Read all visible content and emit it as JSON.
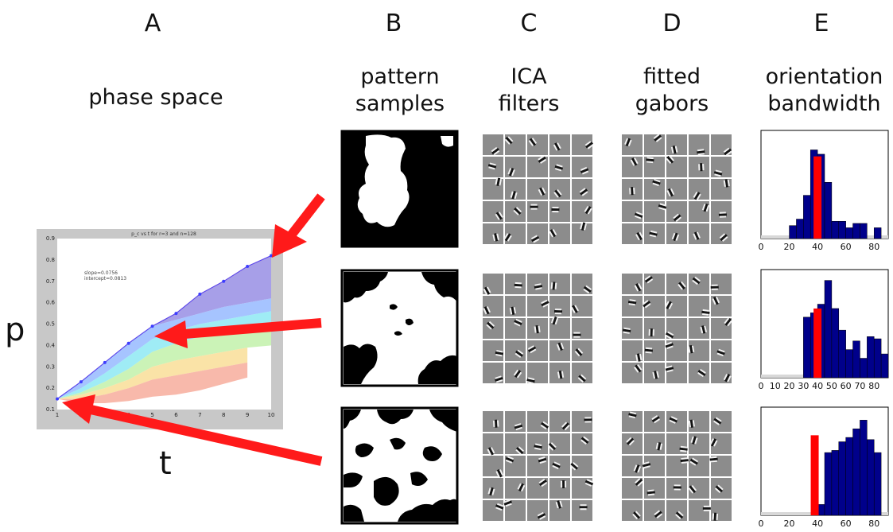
{
  "panel_letters": [
    "A",
    "B",
    "C",
    "D",
    "E"
  ],
  "column_titles": {
    "A": "phase space",
    "B": [
      "pattern",
      "samples"
    ],
    "C": [
      "ICA",
      "filters"
    ],
    "D": [
      "fitted",
      "gabors"
    ],
    "E": [
      "orientation",
      "bandwidth"
    ]
  },
  "axis_letters": {
    "y": "p",
    "x": "t"
  },
  "colors": {
    "arrow": "#ff1a1a",
    "bar_blue": "#00008b",
    "bar_red": "#ff0000",
    "inset_frame": "#c8c8c8"
  },
  "chart_data": [
    {
      "type": "line",
      "title": "p_c vs t for r=3 and n=128",
      "xlim": [
        1,
        10
      ],
      "ylim": [
        0.1,
        0.9
      ],
      "x_ticks": [
        "1",
        "2",
        "3",
        "4",
        "5",
        "6",
        "7",
        "8",
        "9",
        "10"
      ],
      "y_ticks": [
        "0.1",
        "0.2",
        "0.3",
        "0.4",
        "0.5",
        "0.6",
        "0.7",
        "0.8",
        "0.9"
      ],
      "annotations": [
        "slope=0.0756",
        "intercept=0.0813"
      ],
      "series": [
        {
          "x": [
            1,
            2,
            3,
            4,
            5,
            6,
            7,
            8,
            9,
            10
          ],
          "y": [
            0.15,
            0.23,
            0.32,
            0.41,
            0.49,
            0.55,
            0.64,
            0.7,
            0.77,
            0.82
          ]
        }
      ],
      "bands": [
        {
          "color": "#8a7fe0",
          "lower": [
            0.15,
            0.23,
            0.32,
            0.41,
            0.49,
            0.52,
            0.55,
            0.58,
            0.6,
            0.62
          ],
          "upper": [
            0.15,
            0.23,
            0.32,
            0.41,
            0.49,
            0.55,
            0.64,
            0.7,
            0.77,
            0.82
          ]
        },
        {
          "color": "#88b0ff",
          "lower": [
            0.15,
            0.2,
            0.27,
            0.35,
            0.43,
            0.47,
            0.5,
            0.52,
            0.54,
            0.56
          ],
          "upper": [
            0.15,
            0.23,
            0.32,
            0.41,
            0.49,
            0.52,
            0.55,
            0.58,
            0.6,
            0.62
          ]
        },
        {
          "color": "#7fe6f2",
          "lower": [
            0.15,
            0.18,
            0.23,
            0.29,
            0.37,
            0.41,
            0.44,
            0.46,
            0.48,
            0.49
          ],
          "upper": [
            0.15,
            0.2,
            0.27,
            0.35,
            0.43,
            0.47,
            0.5,
            0.52,
            0.54,
            0.56
          ]
        },
        {
          "color": "#b9ef9f",
          "lower": [
            0.15,
            0.17,
            0.2,
            0.24,
            0.3,
            0.33,
            0.35,
            0.37,
            0.39,
            0.4
          ],
          "upper": [
            0.15,
            0.18,
            0.23,
            0.29,
            0.37,
            0.41,
            0.44,
            0.46,
            0.48,
            0.49
          ]
        },
        {
          "color": "#f8d98a",
          "lower": [
            0.15,
            0.15,
            0.17,
            0.2,
            0.24,
            0.26,
            0.28,
            0.3,
            0.32,
            null
          ],
          "upper": [
            0.15,
            0.17,
            0.2,
            0.24,
            0.3,
            0.33,
            0.35,
            0.37,
            0.39,
            null
          ]
        },
        {
          "color": "#f6a28f",
          "lower": [
            0.15,
            0.13,
            0.13,
            0.14,
            0.16,
            0.17,
            0.19,
            0.22,
            0.25,
            null
          ],
          "upper": [
            0.15,
            0.15,
            0.17,
            0.2,
            0.24,
            0.26,
            0.28,
            0.3,
            0.32,
            null
          ]
        }
      ]
    },
    {
      "type": "bar",
      "xlim": [
        0,
        90
      ],
      "x_ticks": [
        "0",
        "20",
        "40",
        "60",
        "80"
      ],
      "bin_width": 5,
      "blue_bins": [
        15,
        20,
        25,
        30,
        35,
        40,
        45,
        50,
        55,
        60,
        65,
        70,
        75,
        80,
        85
      ],
      "blue_values": [
        0.0,
        0.12,
        0.18,
        0.4,
        0.82,
        0.78,
        0.52,
        0.16,
        0.16,
        0.1,
        0.14,
        0.14,
        0.0,
        0.1,
        0.0
      ],
      "red_bar": {
        "x": 40,
        "value": 0.76
      }
    },
    {
      "type": "bar",
      "xlim": [
        0,
        90
      ],
      "x_ticks": [
        "0",
        "10",
        "20",
        "30",
        "40",
        "50",
        "60",
        "70",
        "80"
      ],
      "bin_width": 5,
      "blue_bins": [
        30,
        35,
        40,
        45,
        50,
        55,
        60,
        65,
        70,
        75,
        80,
        85
      ],
      "blue_values": [
        0.56,
        0.6,
        0.68,
        0.9,
        0.64,
        0.44,
        0.26,
        0.34,
        0.18,
        0.38,
        0.36,
        0.22
      ],
      "red_bar": {
        "x": 40,
        "value": 0.64
      }
    },
    {
      "type": "bar",
      "xlim": [
        0,
        90
      ],
      "x_ticks": [
        "0",
        "20",
        "40",
        "60",
        "80"
      ],
      "bin_width": 5,
      "blue_bins": [
        35,
        40,
        45,
        50,
        55,
        60,
        65,
        70,
        75,
        80,
        85
      ],
      "blue_values": [
        0.0,
        0.1,
        0.58,
        0.6,
        0.68,
        0.72,
        0.8,
        0.88,
        0.7,
        0.58,
        0.0
      ],
      "red_bar": {
        "x": 38,
        "value": 0.74
      }
    }
  ]
}
